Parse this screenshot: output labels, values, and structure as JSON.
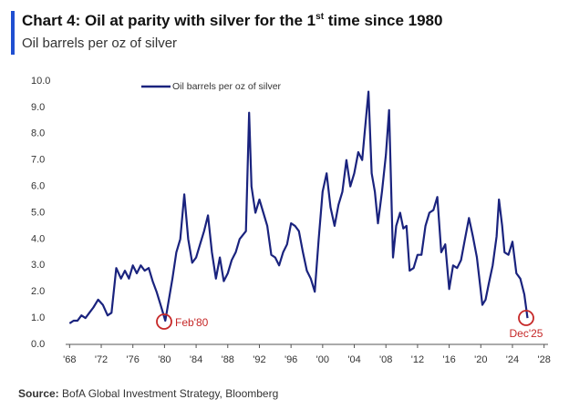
{
  "chart_data": {
    "type": "line",
    "title": [
      "Chart 4: Oil at parity with silver for the 1",
      "st",
      " time since 1980"
    ],
    "subtitle": "Oil barrels per oz of silver",
    "source": [
      "Source:",
      " BofA Global Investment Strategy, Bloomberg"
    ],
    "annotations": [
      "Feb'80",
      "Dec'25"
    ],
    "x": [
      1968.0,
      1968.5,
      1969.0,
      1969.5,
      1970.0,
      1970.5,
      1971.0,
      1971.6,
      1972.2,
      1972.8,
      1973.3,
      1973.9,
      1974.5,
      1975.0,
      1975.5,
      1976.0,
      1976.5,
      1977.0,
      1977.5,
      1978.0,
      1978.5,
      1979.0,
      1979.5,
      1980.1,
      1980.5,
      1981.0,
      1981.5,
      1982.0,
      1982.5,
      1983.0,
      1983.5,
      1984.0,
      1984.5,
      1985.0,
      1985.5,
      1986.0,
      1986.5,
      1987.0,
      1987.5,
      1988.0,
      1988.5,
      1989.0,
      1989.5,
      1990.3,
      1990.7,
      1991.0,
      1991.5,
      1992.0,
      1992.5,
      1993.0,
      1993.5,
      1994.0,
      1994.5,
      1995.0,
      1995.5,
      1996.0,
      1996.5,
      1997.0,
      1997.5,
      1998.0,
      1998.5,
      1999.0,
      1999.5,
      2000.0,
      2000.5,
      2001.0,
      2001.5,
      2002.0,
      2002.5,
      2003.0,
      2003.5,
      2004.0,
      2004.5,
      2005.0,
      2005.3,
      2005.8,
      2006.2,
      2006.6,
      2007.0,
      2007.5,
      2008.0,
      2008.4,
      2008.9,
      2009.3,
      2009.8,
      2010.2,
      2010.6,
      2011.0,
      2011.5,
      2012.0,
      2012.5,
      2013.0,
      2013.5,
      2014.0,
      2014.5,
      2015.0,
      2015.5,
      2016.0,
      2016.5,
      2017.0,
      2017.5,
      2018.0,
      2018.5,
      2019.0,
      2019.5,
      2020.2,
      2020.6,
      2021.0,
      2021.5,
      2022.0,
      2022.3,
      2022.7,
      2023.0,
      2023.5,
      2024.0,
      2024.5,
      2025.0,
      2025.5,
      2025.9
    ],
    "series": [
      {
        "name": "Oil barrels per oz of silver",
        "color": "#1a237e",
        "values": [
          0.8,
          0.9,
          0.9,
          1.1,
          1.0,
          1.2,
          1.4,
          1.7,
          1.5,
          1.1,
          1.2,
          2.9,
          2.5,
          2.8,
          2.5,
          3.0,
          2.7,
          3.0,
          2.8,
          2.9,
          2.4,
          2.0,
          1.5,
          0.9,
          1.6,
          2.5,
          3.5,
          4.0,
          5.7,
          4.0,
          3.1,
          3.3,
          3.8,
          4.3,
          4.9,
          3.5,
          2.5,
          3.3,
          2.4,
          2.7,
          3.2,
          3.5,
          4.0,
          4.3,
          8.8,
          6.0,
          5.0,
          5.5,
          5.0,
          4.5,
          3.4,
          3.3,
          3.0,
          3.5,
          3.8,
          4.6,
          4.5,
          4.3,
          3.5,
          2.8,
          2.5,
          2.0,
          4.0,
          5.8,
          6.5,
          5.2,
          4.5,
          5.3,
          5.8,
          7.0,
          6.0,
          6.5,
          7.3,
          7.0,
          8.0,
          9.6,
          6.5,
          5.8,
          4.6,
          5.8,
          7.2,
          8.9,
          3.3,
          4.5,
          5.0,
          4.4,
          4.5,
          2.8,
          2.9,
          3.4,
          3.4,
          4.5,
          5.0,
          5.1,
          5.6,
          3.5,
          3.8,
          2.1,
          3.0,
          2.9,
          3.2,
          4.0,
          4.8,
          4.1,
          3.3,
          1.5,
          1.7,
          2.3,
          3.0,
          4.1,
          5.5,
          4.5,
          3.5,
          3.4,
          3.9,
          2.7,
          2.5,
          1.9,
          1.0
        ]
      }
    ],
    "xlim": [
      1967.5,
      2028.5
    ],
    "xticks": [
      {
        "value": 1968,
        "label": "'68"
      },
      {
        "value": 1972,
        "label": "'72"
      },
      {
        "value": 1976,
        "label": "'76"
      },
      {
        "value": 1980,
        "label": "'80"
      },
      {
        "value": 1984,
        "label": "'84"
      },
      {
        "value": 1988,
        "label": "'88"
      },
      {
        "value": 1992,
        "label": "'92"
      },
      {
        "value": 1996,
        "label": "'96"
      },
      {
        "value": 2000,
        "label": "'00"
      },
      {
        "value": 2004,
        "label": "'04"
      },
      {
        "value": 2008,
        "label": "'08"
      },
      {
        "value": 2012,
        "label": "'12"
      },
      {
        "value": 2016,
        "label": "'16"
      },
      {
        "value": 2020,
        "label": "'20"
      },
      {
        "value": 2024,
        "label": "'24"
      },
      {
        "value": 2028,
        "label": "'28"
      }
    ],
    "ylim": [
      0,
      10
    ],
    "yticks": [
      {
        "value": 0,
        "label": "0.0"
      },
      {
        "value": 1,
        "label": "1.0"
      },
      {
        "value": 2,
        "label": "2.0"
      },
      {
        "value": 3,
        "label": "3.0"
      },
      {
        "value": 4,
        "label": "4.0"
      },
      {
        "value": 5,
        "label": "5.0"
      },
      {
        "value": 6,
        "label": "6.0"
      },
      {
        "value": 7,
        "label": "7.0"
      },
      {
        "value": 8,
        "label": "8.0"
      },
      {
        "value": 9,
        "label": "9.0"
      },
      {
        "value": 10,
        "label": "10.0"
      }
    ],
    "grid": false,
    "annotation_color": "#c62828"
  }
}
